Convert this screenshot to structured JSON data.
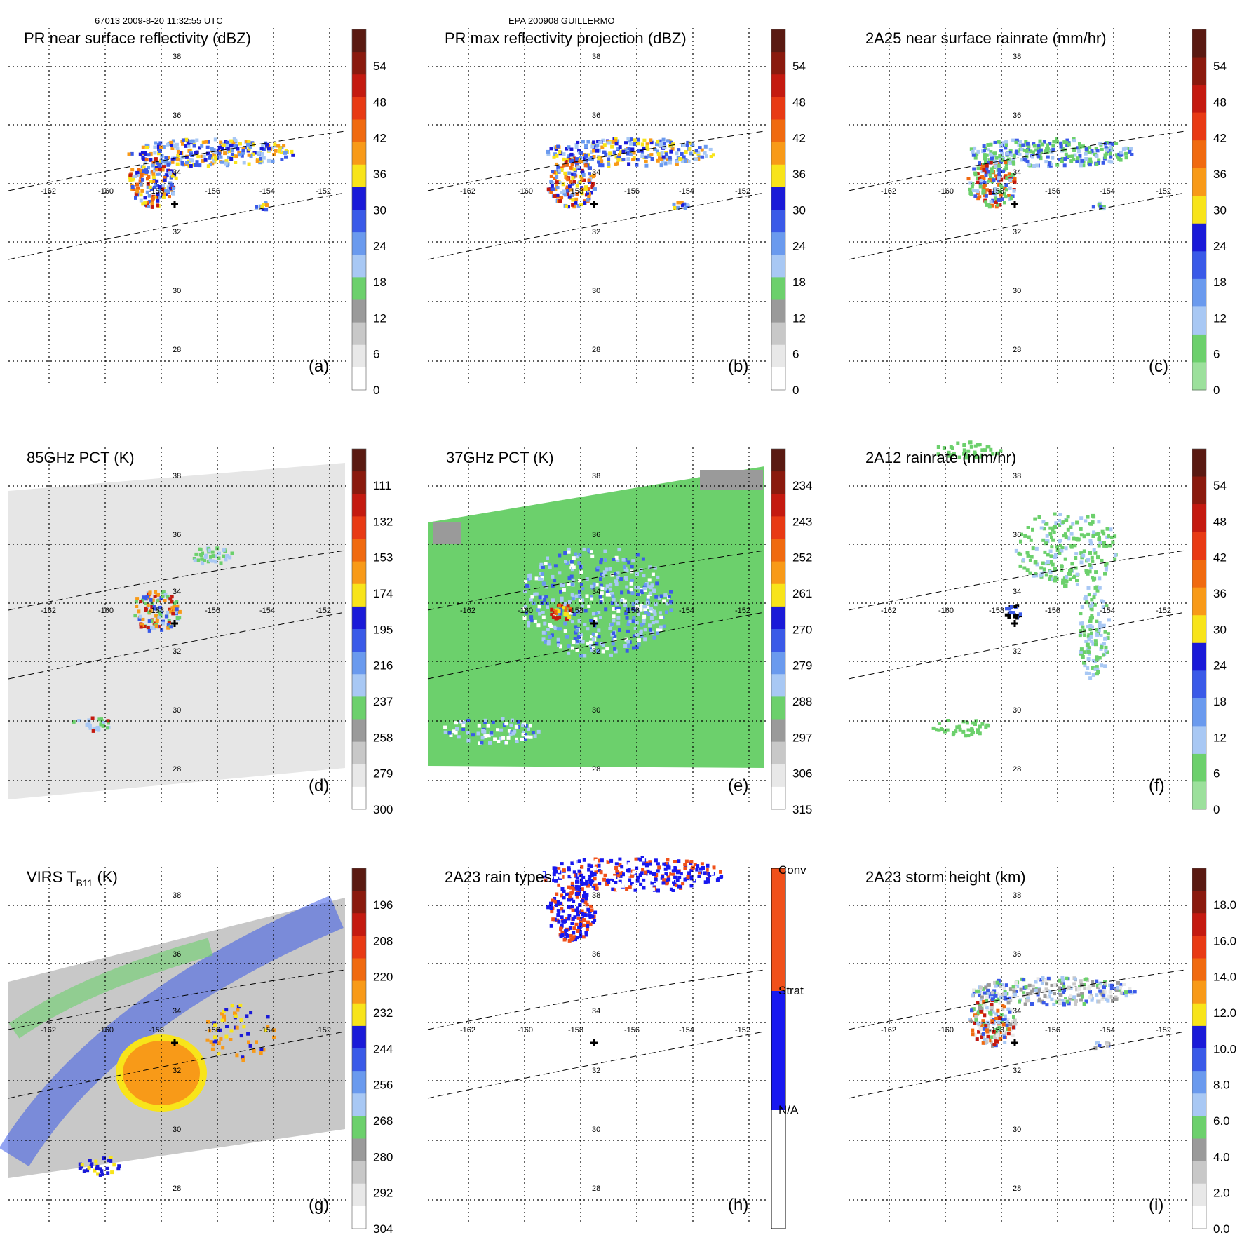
{
  "header": {
    "orbit_time": "67013 2009-8-20 11:32:55 UTC",
    "storm": "EPA 200908 GUILLERMO"
  },
  "grid": {
    "lon_labels": [
      "-162",
      "-160",
      "-158",
      "-156",
      "-154",
      "-152"
    ],
    "lat_labels": [
      "38",
      "36",
      "34",
      "32",
      "30",
      "28"
    ]
  },
  "panels": [
    {
      "id": "a",
      "letter": "(a)",
      "title": "PR near surface reflectivity (dBZ)",
      "field": "reflectivity_near_surface",
      "colorbar": {
        "kind": "continuous",
        "ticks": [
          "54",
          "48",
          "42",
          "36",
          "30",
          "24",
          "18",
          "12",
          "6",
          "0"
        ],
        "colors": [
          "#5a1a12",
          "#8a1a0e",
          "#c41a10",
          "#e83a14",
          "#f06a10",
          "#f89a18",
          "#f8e41a",
          "#1a1ad8",
          "#3a5ae8",
          "#6a9aee",
          "#a8c8f4",
          "#6cd06c",
          "#9a9a9a",
          "#c8c8c8",
          "#e8e8e8",
          "#ffffff"
        ]
      }
    },
    {
      "id": "b",
      "letter": "(b)",
      "title": "PR max reflectivity projection (dBZ)",
      "field": "reflectivity_max",
      "colorbar": {
        "kind": "continuous",
        "ticks": [
          "54",
          "48",
          "42",
          "36",
          "30",
          "24",
          "18",
          "12",
          "6",
          "0"
        ],
        "colors": [
          "#5a1a12",
          "#8a1a0e",
          "#c41a10",
          "#e83a14",
          "#f06a10",
          "#f89a18",
          "#f8e41a",
          "#1a1ad8",
          "#3a5ae8",
          "#6a9aee",
          "#a8c8f4",
          "#6cd06c",
          "#9a9a9a",
          "#c8c8c8",
          "#e8e8e8",
          "#ffffff"
        ]
      }
    },
    {
      "id": "c",
      "letter": "(c)",
      "title": "2A25 near surface rainrate (mm/hr)",
      "field": "rainrate_pr",
      "colorbar": {
        "kind": "continuous",
        "ticks": [
          "54",
          "48",
          "42",
          "36",
          "30",
          "24",
          "18",
          "12",
          "6",
          "0"
        ],
        "colors": [
          "#5a1a12",
          "#8a1a0e",
          "#c41a10",
          "#e83a14",
          "#f06a10",
          "#f89a18",
          "#f8e41a",
          "#1a1ad8",
          "#3a5ae8",
          "#6a9aee",
          "#a8c8f4",
          "#6cd06c",
          "#9ce09c"
        ]
      }
    },
    {
      "id": "d",
      "letter": "(d)",
      "title": "85GHz PCT (K)",
      "field": "pct85",
      "colorbar": {
        "kind": "continuous",
        "ticks": [
          "111",
          "132",
          "153",
          "174",
          "195",
          "216",
          "237",
          "258",
          "279",
          "300"
        ],
        "colors": [
          "#5a1a12",
          "#8a1a0e",
          "#c41a10",
          "#e83a14",
          "#f06a10",
          "#f89a18",
          "#f8e41a",
          "#1a1ad8",
          "#3a5ae8",
          "#6a9aee",
          "#a8c8f4",
          "#6cd06c",
          "#9a9a9a",
          "#c8c8c8",
          "#e8e8e8",
          "#ffffff"
        ]
      }
    },
    {
      "id": "e",
      "letter": "(e)",
      "title": "37GHz PCT (K)",
      "field": "pct37",
      "colorbar": {
        "kind": "continuous",
        "ticks": [
          "234",
          "243",
          "252",
          "261",
          "270",
          "279",
          "288",
          "297",
          "306",
          "315"
        ],
        "colors": [
          "#5a1a12",
          "#8a1a0e",
          "#c41a10",
          "#e83a14",
          "#f06a10",
          "#f89a18",
          "#f8e41a",
          "#1a1ad8",
          "#3a5ae8",
          "#6a9aee",
          "#a8c8f4",
          "#6cd06c",
          "#9a9a9a",
          "#c8c8c8",
          "#e8e8e8",
          "#ffffff"
        ]
      }
    },
    {
      "id": "f",
      "letter": "(f)",
      "title": "2A12 rainrate (mm/hr)",
      "field": "rainrate_tmi",
      "colorbar": {
        "kind": "continuous",
        "ticks": [
          "54",
          "48",
          "42",
          "36",
          "30",
          "24",
          "18",
          "12",
          "6",
          "0"
        ],
        "colors": [
          "#5a1a12",
          "#8a1a0e",
          "#c41a10",
          "#e83a14",
          "#f06a10",
          "#f89a18",
          "#f8e41a",
          "#1a1ad8",
          "#3a5ae8",
          "#6a9aee",
          "#a8c8f4",
          "#6cd06c",
          "#9ce09c"
        ]
      }
    },
    {
      "id": "g",
      "letter": "(g)",
      "title": "VIRS T",
      "title_sub": "B11",
      "title_tail": " (K)",
      "field": "virs",
      "colorbar": {
        "kind": "continuous",
        "ticks": [
          "196",
          "208",
          "220",
          "232",
          "244",
          "256",
          "268",
          "280",
          "292",
          "304"
        ],
        "colors": [
          "#5a1a12",
          "#8a1a0e",
          "#c41a10",
          "#e83a14",
          "#f06a10",
          "#f89a18",
          "#f8e41a",
          "#1a1ad8",
          "#3a5ae8",
          "#6a9aee",
          "#a8c8f4",
          "#6cd06c",
          "#9a9a9a",
          "#c8c8c8",
          "#e8e8e8",
          "#ffffff"
        ]
      }
    },
    {
      "id": "h",
      "letter": "(h)",
      "title": "2A23 rain types",
      "field": "raintype",
      "colorbar": {
        "kind": "category",
        "labels": [
          "Conv",
          "Strat",
          "N/A"
        ],
        "colors": [
          "#f0501a",
          "#1818f0",
          "#ffffff"
        ]
      }
    },
    {
      "id": "i",
      "letter": "(i)",
      "title": "2A23 storm height (km)",
      "field": "stormheight",
      "colorbar": {
        "kind": "continuous",
        "ticks": [
          "18.0",
          "16.0",
          "14.0",
          "12.0",
          "10.0",
          "8.0",
          "6.0",
          "4.0",
          "2.0",
          "0.0"
        ],
        "colors": [
          "#5a1a12",
          "#8a1a0e",
          "#c41a10",
          "#e83a14",
          "#f06a10",
          "#f89a18",
          "#f8e41a",
          "#1a1ad8",
          "#3a5ae8",
          "#6a9aee",
          "#a8c8f4",
          "#6cd06c",
          "#9a9a9a",
          "#c8c8c8",
          "#e8e8e8",
          "#ffffff"
        ]
      }
    }
  ]
}
